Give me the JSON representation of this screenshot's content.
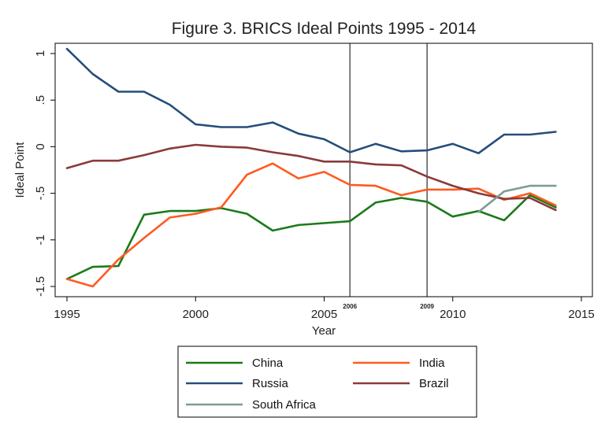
{
  "chart_data": {
    "type": "line",
    "title": "Figure 3. BRICS Ideal Points 1995 - 2014",
    "xlabel": "Year",
    "ylabel": "Ideal Point",
    "xlim": [
      1995,
      2015
    ],
    "ylim": [
      -1.5,
      1
    ],
    "x_ticks": [
      1995,
      2000,
      2005,
      2010,
      2015
    ],
    "y_ticks": [
      1,
      0.5,
      0,
      -0.5,
      -1,
      -1.5
    ],
    "y_tick_labels": [
      "1",
      ".5",
      "0",
      "-.5",
      "-1",
      "-1.5"
    ],
    "vlines": [
      {
        "x": 2006,
        "label": "2006"
      },
      {
        "x": 2009,
        "label": "2009"
      }
    ],
    "legend_position": "bottom",
    "series": [
      {
        "name": "China",
        "color": "#1a7a1a",
        "x": [
          1995,
          1996,
          1997,
          1998,
          1999,
          2000,
          2001,
          2002,
          2003,
          2004,
          2005,
          2006,
          2007,
          2008,
          2009,
          2010,
          2011,
          2012,
          2013,
          2014
        ],
        "y": [
          -1.42,
          -1.29,
          -1.28,
          -0.73,
          -0.69,
          -0.69,
          -0.66,
          -0.72,
          -0.9,
          -0.84,
          -0.82,
          -0.8,
          -0.6,
          -0.55,
          -0.59,
          -0.75,
          -0.69,
          -0.79,
          -0.52,
          -0.65
        ]
      },
      {
        "name": "India",
        "color": "#ff5a1f",
        "x": [
          1995,
          1996,
          1997,
          1998,
          1999,
          2000,
          2001,
          2002,
          2003,
          2004,
          2005,
          2006,
          2007,
          2008,
          2009,
          2010,
          2011,
          2012,
          2013,
          2014
        ],
        "y": [
          -1.42,
          -1.5,
          -1.21,
          -0.98,
          -0.76,
          -0.72,
          -0.65,
          -0.3,
          -0.18,
          -0.34,
          -0.27,
          -0.41,
          -0.42,
          -0.52,
          -0.46,
          -0.46,
          -0.45,
          -0.57,
          -0.5,
          -0.63
        ]
      },
      {
        "name": "Russia",
        "color": "#254d7a",
        "x": [
          1995,
          1996,
          1997,
          1998,
          1999,
          2000,
          2001,
          2002,
          2003,
          2004,
          2005,
          2006,
          2007,
          2008,
          2009,
          2010,
          2011,
          2012,
          2013,
          2014
        ],
        "y": [
          1.05,
          0.78,
          0.59,
          0.59,
          0.45,
          0.24,
          0.21,
          0.21,
          0.26,
          0.14,
          0.08,
          -0.06,
          0.03,
          -0.05,
          -0.04,
          0.03,
          -0.07,
          0.13,
          0.13,
          0.16
        ]
      },
      {
        "name": "Brazil",
        "color": "#8b3a3a",
        "x": [
          1995,
          1996,
          1997,
          1998,
          1999,
          2000,
          2001,
          2002,
          2003,
          2004,
          2005,
          2006,
          2007,
          2008,
          2009,
          2010,
          2011,
          2012,
          2013,
          2014
        ],
        "y": [
          -0.23,
          -0.15,
          -0.15,
          -0.09,
          -0.02,
          0.02,
          0.0,
          -0.01,
          -0.06,
          -0.1,
          -0.16,
          -0.16,
          -0.19,
          -0.2,
          -0.32,
          -0.42,
          -0.5,
          -0.56,
          -0.55,
          -0.68
        ]
      },
      {
        "name": "South Africa",
        "color": "#7f9c94",
        "x": [
          2011,
          2012,
          2013,
          2014
        ],
        "y": [
          -0.7,
          -0.48,
          -0.42,
          -0.42
        ]
      }
    ]
  }
}
